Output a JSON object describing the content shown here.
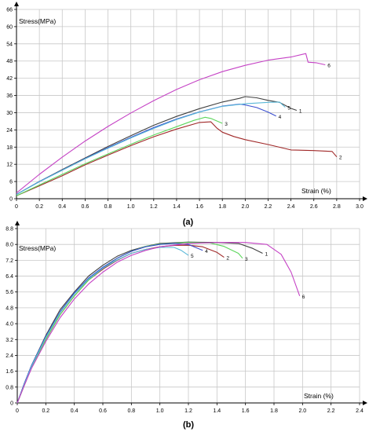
{
  "chart_data": [
    {
      "type": "line",
      "panel_label": "(a)",
      "ylabel": "Stress(MPa)",
      "xlabel": "Strain (%)",
      "xlim": [
        0,
        3.0
      ],
      "ylim": [
        0,
        66
      ],
      "x_ticks": [
        "0",
        "0.2",
        "0.4",
        "0.6",
        "0.8",
        "1.0",
        "1.2",
        "1.4",
        "1.6",
        "1.8",
        "2.0",
        "2.2",
        "2.4",
        "2.6",
        "2.8",
        "3.0"
      ],
      "y_ticks": [
        "0",
        "6",
        "12",
        "18",
        "24",
        "30",
        "36",
        "42",
        "48",
        "54",
        "60",
        "66"
      ],
      "grid": true,
      "series": [
        {
          "name": "1",
          "color": "#404040",
          "points": [
            [
              0,
              1.5
            ],
            [
              0.2,
              6
            ],
            [
              0.4,
              10.2
            ],
            [
              0.6,
              14.2
            ],
            [
              0.8,
              18.2
            ],
            [
              1.0,
              22.0
            ],
            [
              1.2,
              25.6
            ],
            [
              1.4,
              28.7
            ],
            [
              1.6,
              31.4
            ],
            [
              1.8,
              33.7
            ],
            [
              1.95,
              35.0
            ],
            [
              2.0,
              35.6
            ],
            [
              2.1,
              35.2
            ],
            [
              2.2,
              34.3
            ],
            [
              2.3,
              33.6
            ],
            [
              2.4,
              31.5
            ],
            [
              2.45,
              30.8
            ]
          ]
        },
        {
          "name": "2",
          "color": "#a02828",
          "points": [
            [
              0,
              1.0
            ],
            [
              0.2,
              4.5
            ],
            [
              0.4,
              8.0
            ],
            [
              0.6,
              11.8
            ],
            [
              0.8,
              15.2
            ],
            [
              1.0,
              18.5
            ],
            [
              1.2,
              21.6
            ],
            [
              1.4,
              24.3
            ],
            [
              1.6,
              26.6
            ],
            [
              1.7,
              26.8
            ],
            [
              1.75,
              24.7
            ],
            [
              1.8,
              23.2
            ],
            [
              1.9,
              21.7
            ],
            [
              2.0,
              20.6
            ],
            [
              2.2,
              18.9
            ],
            [
              2.4,
              17.0
            ],
            [
              2.6,
              16.8
            ],
            [
              2.76,
              16.5
            ],
            [
              2.8,
              14.6
            ]
          ]
        },
        {
          "name": "3",
          "color": "#5cd65c",
          "points": [
            [
              0,
              1.0
            ],
            [
              0.2,
              4.8
            ],
            [
              0.4,
              8.5
            ],
            [
              0.6,
              12.2
            ],
            [
              0.8,
              15.6
            ],
            [
              1.0,
              19.0
            ],
            [
              1.2,
              22.2
            ],
            [
              1.4,
              25.1
            ],
            [
              1.55,
              27.3
            ],
            [
              1.65,
              28.4
            ],
            [
              1.7,
              28.0
            ],
            [
              1.8,
              26.3
            ]
          ]
        },
        {
          "name": "4",
          "color": "#3a4fcf",
          "points": [
            [
              0,
              1.5
            ],
            [
              0.2,
              6
            ],
            [
              0.4,
              10.0
            ],
            [
              0.6,
              14.0
            ],
            [
              0.8,
              17.8
            ],
            [
              1.0,
              21.4
            ],
            [
              1.2,
              24.8
            ],
            [
              1.4,
              27.8
            ],
            [
              1.6,
              30.3
            ],
            [
              1.8,
              32.3
            ],
            [
              1.95,
              33.0
            ],
            [
              2.0,
              32.7
            ],
            [
              2.1,
              31.8
            ],
            [
              2.2,
              30.2
            ],
            [
              2.27,
              28.8
            ]
          ]
        },
        {
          "name": "5",
          "color": "#5ab8d8",
          "points": [
            [
              0,
              1.5
            ],
            [
              0.2,
              5.9
            ],
            [
              0.4,
              9.9
            ],
            [
              0.6,
              13.9
            ],
            [
              0.8,
              17.6
            ],
            [
              1.0,
              21.2
            ],
            [
              1.2,
              24.5
            ],
            [
              1.4,
              27.6
            ],
            [
              1.6,
              30.2
            ],
            [
              1.8,
              32.2
            ],
            [
              2.0,
              33.1
            ],
            [
              2.2,
              33.6
            ],
            [
              2.3,
              33.7
            ],
            [
              2.35,
              31.9
            ]
          ]
        },
        {
          "name": "6",
          "color": "#c542c5",
          "points": [
            [
              0,
              2.0
            ],
            [
              0.2,
              8.5
            ],
            [
              0.4,
              14.5
            ],
            [
              0.6,
              20.1
            ],
            [
              0.8,
              25.2
            ],
            [
              1.0,
              29.9
            ],
            [
              1.2,
              34.2
            ],
            [
              1.4,
              38.1
            ],
            [
              1.6,
              41.5
            ],
            [
              1.8,
              44.3
            ],
            [
              2.0,
              46.5
            ],
            [
              2.2,
              48.3
            ],
            [
              2.4,
              49.4
            ],
            [
              2.53,
              50.6
            ],
            [
              2.55,
              47.6
            ],
            [
              2.62,
              47.4
            ],
            [
              2.7,
              46.7
            ]
          ]
        }
      ]
    },
    {
      "type": "line",
      "panel_label": "(b)",
      "ylabel": "Stress(MPa)",
      "xlabel": "Strain (%)",
      "xlim": [
        0,
        2.4
      ],
      "ylim": [
        0,
        8.8
      ],
      "x_ticks": [
        "0",
        "0.2",
        "0.4",
        "0.6",
        "0.8",
        "1.0",
        "1.2",
        "1.4",
        "1.6",
        "1.8",
        "2.0",
        "2.2",
        "2.4"
      ],
      "y_ticks": [
        "0",
        "0.8",
        "1.6",
        "2.4",
        "3.2",
        "4.0",
        "4.8",
        "5.6",
        "6.4",
        "7.2",
        "8.0",
        "8.8"
      ],
      "grid": true,
      "series": [
        {
          "name": "1",
          "color": "#404040",
          "points": [
            [
              0,
              0
            ],
            [
              0.05,
              1.0
            ],
            [
              0.1,
              1.9
            ],
            [
              0.2,
              3.4
            ],
            [
              0.3,
              4.7
            ],
            [
              0.4,
              5.6
            ],
            [
              0.5,
              6.4
            ],
            [
              0.6,
              6.95
            ],
            [
              0.7,
              7.4
            ],
            [
              0.8,
              7.7
            ],
            [
              0.9,
              7.9
            ],
            [
              1.0,
              8.05
            ],
            [
              1.2,
              8.12
            ],
            [
              1.4,
              8.1
            ],
            [
              1.55,
              8.05
            ],
            [
              1.65,
              7.8
            ],
            [
              1.72,
              7.55
            ]
          ]
        },
        {
          "name": "2",
          "color": "#a02828",
          "points": [
            [
              0,
              0
            ],
            [
              0.05,
              0.9
            ],
            [
              0.1,
              1.8
            ],
            [
              0.2,
              3.2
            ],
            [
              0.3,
              4.45
            ],
            [
              0.4,
              5.4
            ],
            [
              0.5,
              6.2
            ],
            [
              0.6,
              6.75
            ],
            [
              0.7,
              7.2
            ],
            [
              0.8,
              7.55
            ],
            [
              0.9,
              7.75
            ],
            [
              1.0,
              7.88
            ],
            [
              1.1,
              7.95
            ],
            [
              1.2,
              7.96
            ],
            [
              1.3,
              7.88
            ],
            [
              1.4,
              7.6
            ],
            [
              1.45,
              7.35
            ]
          ]
        },
        {
          "name": "3",
          "color": "#5cd65c",
          "points": [
            [
              0,
              0
            ],
            [
              0.05,
              0.9
            ],
            [
              0.1,
              1.8
            ],
            [
              0.2,
              3.2
            ],
            [
              0.3,
              4.45
            ],
            [
              0.4,
              5.4
            ],
            [
              0.5,
              6.2
            ],
            [
              0.6,
              6.8
            ],
            [
              0.7,
              7.3
            ],
            [
              0.8,
              7.65
            ],
            [
              0.9,
              7.9
            ],
            [
              1.0,
              8.02
            ],
            [
              1.2,
              8.1
            ],
            [
              1.35,
              8.08
            ],
            [
              1.45,
              7.9
            ],
            [
              1.55,
              7.55
            ],
            [
              1.58,
              7.3
            ]
          ]
        },
        {
          "name": "4",
          "color": "#3a4fcf",
          "points": [
            [
              0,
              0
            ],
            [
              0.05,
              1.0
            ],
            [
              0.1,
              1.9
            ],
            [
              0.2,
              3.35
            ],
            [
              0.3,
              4.6
            ],
            [
              0.4,
              5.55
            ],
            [
              0.5,
              6.3
            ],
            [
              0.6,
              6.85
            ],
            [
              0.7,
              7.3
            ],
            [
              0.8,
              7.65
            ],
            [
              0.9,
              7.88
            ],
            [
              1.0,
              8.0
            ],
            [
              1.1,
              8.05
            ],
            [
              1.2,
              8.0
            ],
            [
              1.25,
              7.85
            ],
            [
              1.3,
              7.7
            ]
          ]
        },
        {
          "name": "5",
          "color": "#5ab8d8",
          "points": [
            [
              0,
              0
            ],
            [
              0.05,
              0.95
            ],
            [
              0.1,
              1.85
            ],
            [
              0.2,
              3.3
            ],
            [
              0.3,
              4.55
            ],
            [
              0.4,
              5.5
            ],
            [
              0.5,
              6.25
            ],
            [
              0.6,
              6.8
            ],
            [
              0.7,
              7.22
            ],
            [
              0.8,
              7.55
            ],
            [
              0.9,
              7.75
            ],
            [
              1.0,
              7.85
            ],
            [
              1.1,
              7.85
            ],
            [
              1.15,
              7.7
            ],
            [
              1.2,
              7.45
            ]
          ]
        },
        {
          "name": "6",
          "color": "#c542c5",
          "points": [
            [
              0,
              0
            ],
            [
              0.05,
              0.9
            ],
            [
              0.1,
              1.75
            ],
            [
              0.2,
              3.1
            ],
            [
              0.3,
              4.3
            ],
            [
              0.4,
              5.25
            ],
            [
              0.5,
              6.0
            ],
            [
              0.6,
              6.6
            ],
            [
              0.7,
              7.1
            ],
            [
              0.8,
              7.45
            ],
            [
              0.9,
              7.7
            ],
            [
              1.0,
              7.88
            ],
            [
              1.2,
              8.05
            ],
            [
              1.4,
              8.1
            ],
            [
              1.6,
              8.1
            ],
            [
              1.75,
              8.0
            ],
            [
              1.85,
              7.5
            ],
            [
              1.92,
              6.6
            ],
            [
              1.98,
              5.4
            ]
          ]
        }
      ]
    }
  ]
}
